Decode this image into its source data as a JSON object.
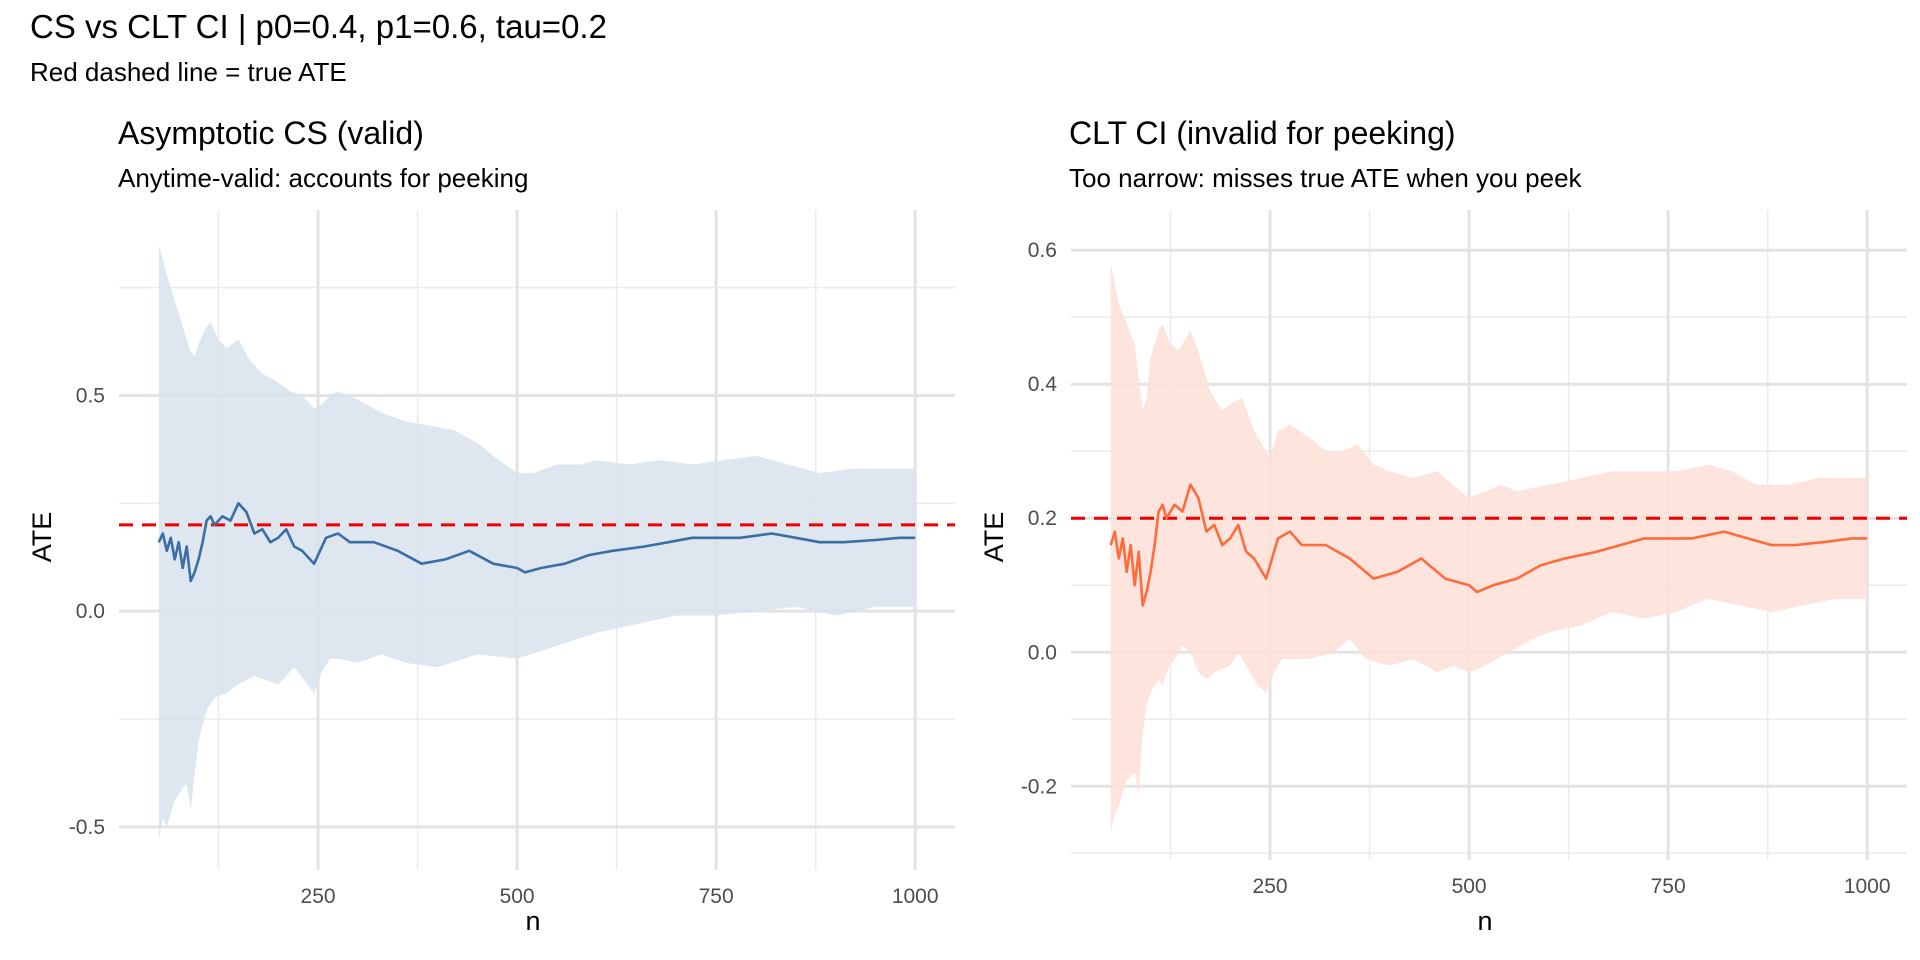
{
  "title": "CS vs CLT CI | p0=0.4, p1=0.6, tau=0.2",
  "subtitle": "Red dashed line = true ATE",
  "chart_data": [
    {
      "type": "line",
      "title": "Asymptotic CS (valid)",
      "subtitle": "Anytime-valid: accounts for peeking",
      "xlabel": "n",
      "ylabel": "ATE",
      "xlim": [
        0,
        1050
      ],
      "ylim": [
        -0.6,
        0.93
      ],
      "xticks": [
        250,
        500,
        750,
        1000
      ],
      "xtick_labels": [
        "250",
        "500",
        "750",
        "1000"
      ],
      "yticks": [
        -0.5,
        0.0,
        0.5
      ],
      "ytick_labels": [
        "-0.5",
        "0.0",
        "0.5"
      ],
      "x_minor": [
        125,
        375,
        625,
        875
      ],
      "y_minor": [
        -0.25,
        0.25,
        0.75
      ],
      "grid": true,
      "true_ate": 0.2,
      "line_color": "#3a6ea5",
      "band_color": "#d8e2ed",
      "ref_color": "#ee0000",
      "series": [
        {
          "name": "estimate",
          "x": [
            50,
            55,
            60,
            65,
            70,
            75,
            80,
            85,
            90,
            95,
            100,
            105,
            110,
            115,
            120,
            130,
            140,
            150,
            160,
            170,
            180,
            190,
            200,
            210,
            220,
            230,
            245,
            260,
            275,
            290,
            320,
            350,
            380,
            410,
            440,
            470,
            500,
            510,
            530,
            560,
            590,
            620,
            660,
            690,
            720,
            750,
            780,
            800,
            820,
            850,
            880,
            910,
            950,
            980,
            1000
          ],
          "y": [
            0.16,
            0.18,
            0.14,
            0.17,
            0.12,
            0.16,
            0.1,
            0.15,
            0.07,
            0.09,
            0.12,
            0.16,
            0.21,
            0.22,
            0.2,
            0.22,
            0.21,
            0.25,
            0.23,
            0.18,
            0.19,
            0.16,
            0.17,
            0.19,
            0.15,
            0.14,
            0.11,
            0.17,
            0.18,
            0.16,
            0.16,
            0.14,
            0.11,
            0.12,
            0.14,
            0.11,
            0.1,
            0.09,
            0.1,
            0.11,
            0.13,
            0.14,
            0.15,
            0.16,
            0.17,
            0.17,
            0.17,
            0.175,
            0.18,
            0.17,
            0.16,
            0.16,
            0.165,
            0.17,
            0.17
          ]
        },
        {
          "name": "upper",
          "x": [
            50,
            60,
            70,
            80,
            90,
            95,
            100,
            110,
            115,
            125,
            135,
            150,
            165,
            180,
            200,
            215,
            230,
            245,
            255,
            265,
            275,
            300,
            330,
            360,
            390,
            420,
            450,
            470,
            500,
            520,
            550,
            580,
            600,
            640,
            680,
            720,
            760,
            800,
            840,
            880,
            920,
            960,
            1000
          ],
          "y": [
            0.85,
            0.78,
            0.72,
            0.66,
            0.6,
            0.59,
            0.62,
            0.66,
            0.67,
            0.63,
            0.61,
            0.63,
            0.58,
            0.55,
            0.53,
            0.51,
            0.5,
            0.47,
            0.48,
            0.5,
            0.51,
            0.49,
            0.46,
            0.44,
            0.43,
            0.42,
            0.39,
            0.36,
            0.32,
            0.32,
            0.34,
            0.34,
            0.35,
            0.34,
            0.35,
            0.34,
            0.35,
            0.36,
            0.34,
            0.32,
            0.33,
            0.33,
            0.33
          ]
        },
        {
          "name": "lower",
          "x": [
            50,
            55,
            60,
            70,
            80,
            85,
            90,
            95,
            100,
            110,
            120,
            135,
            150,
            170,
            200,
            220,
            245,
            255,
            265,
            275,
            300,
            330,
            360,
            400,
            450,
            500,
            550,
            600,
            650,
            700,
            750,
            800,
            850,
            900,
            950,
            1000
          ],
          "y": [
            -0.53,
            -0.48,
            -0.5,
            -0.44,
            -0.41,
            -0.4,
            -0.46,
            -0.38,
            -0.3,
            -0.23,
            -0.2,
            -0.19,
            -0.17,
            -0.15,
            -0.17,
            -0.13,
            -0.19,
            -0.14,
            -0.11,
            -0.11,
            -0.12,
            -0.1,
            -0.12,
            -0.13,
            -0.1,
            -0.11,
            -0.08,
            -0.05,
            -0.03,
            -0.01,
            -0.01,
            0.0,
            0.01,
            -0.01,
            0.01,
            0.01
          ]
        }
      ]
    },
    {
      "type": "line",
      "title": "CLT CI (invalid for peeking)",
      "subtitle": "Too narrow: misses true ATE when you peek",
      "xlabel": "n",
      "ylabel": "ATE",
      "xlim": [
        0,
        1050
      ],
      "ylim": [
        -0.31,
        0.66
      ],
      "xticks": [
        250,
        500,
        750,
        1000
      ],
      "xtick_labels": [
        "250",
        "500",
        "750",
        "1000"
      ],
      "yticks": [
        -0.2,
        0.0,
        0.2,
        0.4,
        0.6
      ],
      "ytick_labels": [
        "-0.2",
        "0.0",
        "0.2",
        "0.4",
        "0.6"
      ],
      "x_minor": [
        125,
        375,
        625,
        875
      ],
      "y_minor": [
        -0.3,
        -0.1,
        0.1,
        0.3,
        0.5
      ],
      "grid": true,
      "true_ate": 0.2,
      "line_color": "#ff6b3d",
      "band_color": "#fde0d8",
      "ref_color": "#ee0000",
      "series": [
        {
          "name": "estimate",
          "x": [
            50,
            55,
            60,
            65,
            70,
            75,
            80,
            85,
            90,
            95,
            100,
            105,
            110,
            115,
            120,
            130,
            140,
            150,
            160,
            170,
            180,
            190,
            200,
            210,
            220,
            230,
            245,
            260,
            275,
            290,
            320,
            350,
            380,
            410,
            440,
            470,
            500,
            510,
            530,
            560,
            590,
            620,
            660,
            690,
            720,
            750,
            780,
            800,
            820,
            850,
            880,
            910,
            950,
            980,
            1000
          ],
          "y": [
            0.16,
            0.18,
            0.14,
            0.17,
            0.12,
            0.16,
            0.1,
            0.15,
            0.07,
            0.09,
            0.12,
            0.16,
            0.21,
            0.22,
            0.2,
            0.22,
            0.21,
            0.25,
            0.23,
            0.18,
            0.19,
            0.16,
            0.17,
            0.19,
            0.15,
            0.14,
            0.11,
            0.17,
            0.18,
            0.16,
            0.16,
            0.14,
            0.11,
            0.12,
            0.14,
            0.11,
            0.1,
            0.09,
            0.1,
            0.11,
            0.13,
            0.14,
            0.15,
            0.16,
            0.17,
            0.17,
            0.17,
            0.175,
            0.18,
            0.17,
            0.16,
            0.16,
            0.165,
            0.17,
            0.17
          ]
        },
        {
          "name": "upper",
          "x": [
            50,
            55,
            60,
            70,
            80,
            85,
            90,
            95,
            100,
            110,
            115,
            125,
            135,
            145,
            150,
            160,
            175,
            190,
            200,
            215,
            230,
            240,
            250,
            260,
            275,
            300,
            320,
            340,
            360,
            380,
            400,
            430,
            460,
            480,
            500,
            520,
            540,
            560,
            600,
            640,
            680,
            720,
            760,
            800,
            830,
            860,
            900,
            940,
            980,
            1000
          ],
          "y": [
            0.58,
            0.55,
            0.52,
            0.49,
            0.46,
            0.41,
            0.36,
            0.38,
            0.44,
            0.48,
            0.49,
            0.46,
            0.45,
            0.47,
            0.48,
            0.45,
            0.39,
            0.36,
            0.37,
            0.38,
            0.33,
            0.31,
            0.29,
            0.33,
            0.34,
            0.32,
            0.3,
            0.3,
            0.31,
            0.28,
            0.27,
            0.26,
            0.27,
            0.25,
            0.23,
            0.24,
            0.25,
            0.24,
            0.25,
            0.26,
            0.27,
            0.27,
            0.27,
            0.28,
            0.27,
            0.25,
            0.25,
            0.26,
            0.26,
            0.26
          ]
        },
        {
          "name": "lower",
          "x": [
            50,
            55,
            60,
            70,
            80,
            85,
            90,
            95,
            100,
            110,
            115,
            120,
            130,
            140,
            150,
            160,
            170,
            180,
            200,
            210,
            220,
            235,
            245,
            255,
            265,
            280,
            300,
            330,
            350,
            370,
            400,
            430,
            460,
            480,
            500,
            520,
            550,
            580,
            600,
            640,
            680,
            720,
            760,
            800,
            840,
            880,
            920,
            960,
            1000
          ],
          "y": [
            -0.27,
            -0.24,
            -0.23,
            -0.19,
            -0.18,
            -0.21,
            -0.12,
            -0.08,
            -0.06,
            -0.04,
            -0.05,
            -0.03,
            -0.01,
            0.01,
            0.0,
            -0.03,
            -0.04,
            -0.03,
            -0.02,
            0.0,
            -0.02,
            -0.05,
            -0.06,
            -0.03,
            -0.01,
            -0.01,
            -0.01,
            0.0,
            0.02,
            -0.01,
            -0.02,
            -0.01,
            -0.03,
            -0.02,
            -0.03,
            -0.02,
            0.0,
            0.02,
            0.03,
            0.04,
            0.06,
            0.05,
            0.06,
            0.08,
            0.07,
            0.06,
            0.07,
            0.08,
            0.08
          ]
        }
      ]
    }
  ]
}
